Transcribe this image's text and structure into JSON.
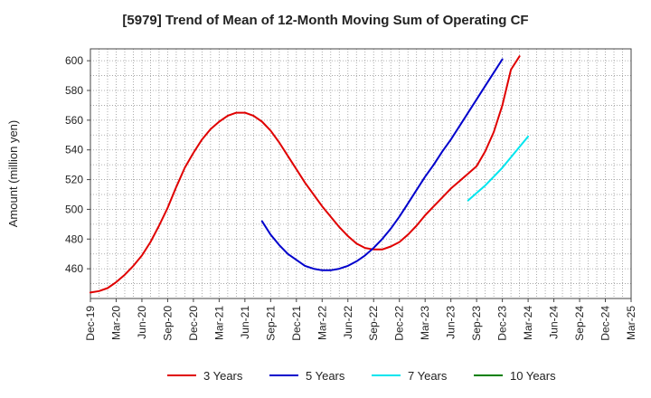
{
  "chart_data": {
    "type": "line",
    "title": "[5979]  Trend of Mean of 12-Month Moving Sum of Operating CF",
    "ylabel": "Amount (million yen)",
    "xlabel": "",
    "ylim": [
      440,
      608
    ],
    "y_ticks": [
      460,
      480,
      500,
      520,
      540,
      560,
      580,
      600
    ],
    "x_start": "Dec-19",
    "x_end": "Mar-25",
    "x_ticks": [
      "Dec-19",
      "Mar-20",
      "Jun-20",
      "Sep-20",
      "Dec-20",
      "Mar-21",
      "Jun-21",
      "Sep-21",
      "Dec-21",
      "Mar-22",
      "Jun-22",
      "Sep-22",
      "Dec-22",
      "Mar-23",
      "Jun-23",
      "Sep-23",
      "Dec-23",
      "Mar-24",
      "Jun-24",
      "Sep-24",
      "Dec-24",
      "Mar-25"
    ],
    "grid": true,
    "legend_position": "bottom",
    "series": [
      {
        "name": "3 Years",
        "color": "#e00000",
        "start": "Dec-19",
        "values": [
          444,
          445,
          447,
          451,
          456,
          462,
          469,
          478,
          489,
          501,
          515,
          528,
          538,
          547,
          554,
          559,
          563,
          565,
          565,
          563,
          559,
          553,
          545,
          536,
          527,
          518,
          510,
          502,
          495,
          488,
          482,
          477,
          474,
          473,
          473,
          475,
          478,
          483,
          489,
          496,
          502,
          508,
          514,
          519,
          524,
          529,
          539,
          552,
          570,
          594,
          603
        ]
      },
      {
        "name": "5 Years",
        "color": "#0000cc",
        "start": "Aug-21",
        "values": [
          492,
          483,
          476,
          470,
          466,
          462,
          460,
          459,
          459,
          460,
          462,
          465,
          469,
          474,
          480,
          487,
          495,
          504,
          513,
          522,
          530,
          539,
          547,
          556,
          565,
          574,
          583,
          592,
          601
        ]
      },
      {
        "name": "7 Years",
        "color": "#00e5ee",
        "start": "Aug-23",
        "values": [
          506,
          511,
          516,
          522,
          528,
          535,
          542,
          549
        ]
      },
      {
        "name": "10 Years",
        "color": "#008000",
        "start": "Mar-24",
        "values": []
      }
    ]
  }
}
